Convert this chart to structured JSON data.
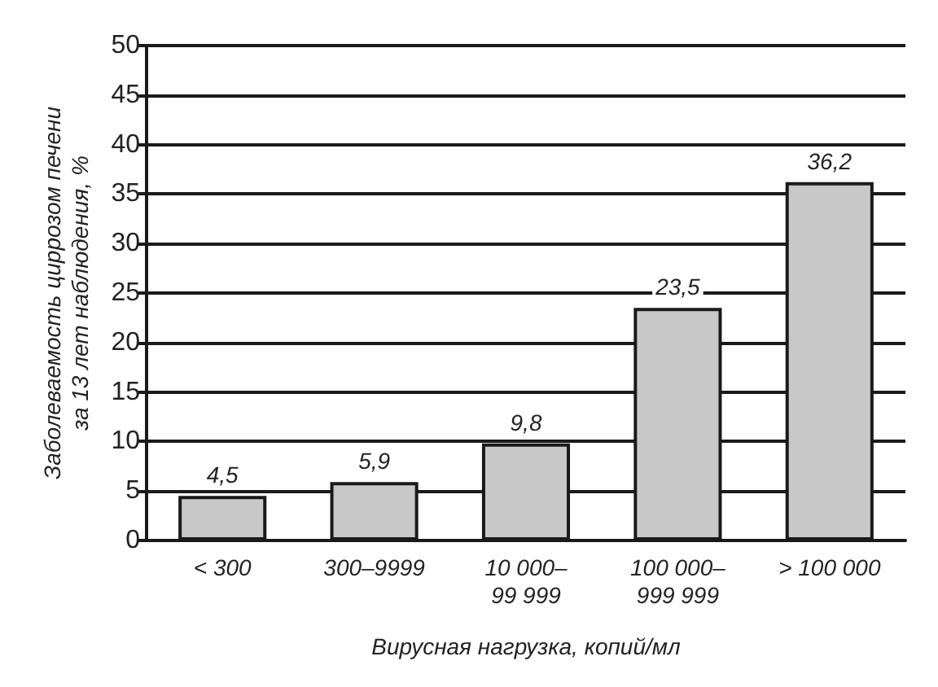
{
  "chart_data": {
    "type": "bar",
    "xlabel": "Вирусная нагрузка, копий/мл",
    "ylabel": "Заболеваемость циррозом печени\nза 13 лет наблюдения, %",
    "categories": [
      "< 300",
      "300–9999",
      "10 000–\n99 999",
      "100 000–\n999 999",
      "> 100 000"
    ],
    "values": [
      4.5,
      5.9,
      9.8,
      23.5,
      36.2
    ],
    "value_labels": [
      "4,5",
      "5,9",
      "9,8",
      "23,5",
      "36,2"
    ],
    "color": "#c8c8c8",
    "ylim": [
      0,
      50
    ],
    "yticks": [
      0,
      5,
      10,
      15,
      20,
      25,
      30,
      35,
      40,
      45,
      50
    ],
    "grid": "y"
  }
}
